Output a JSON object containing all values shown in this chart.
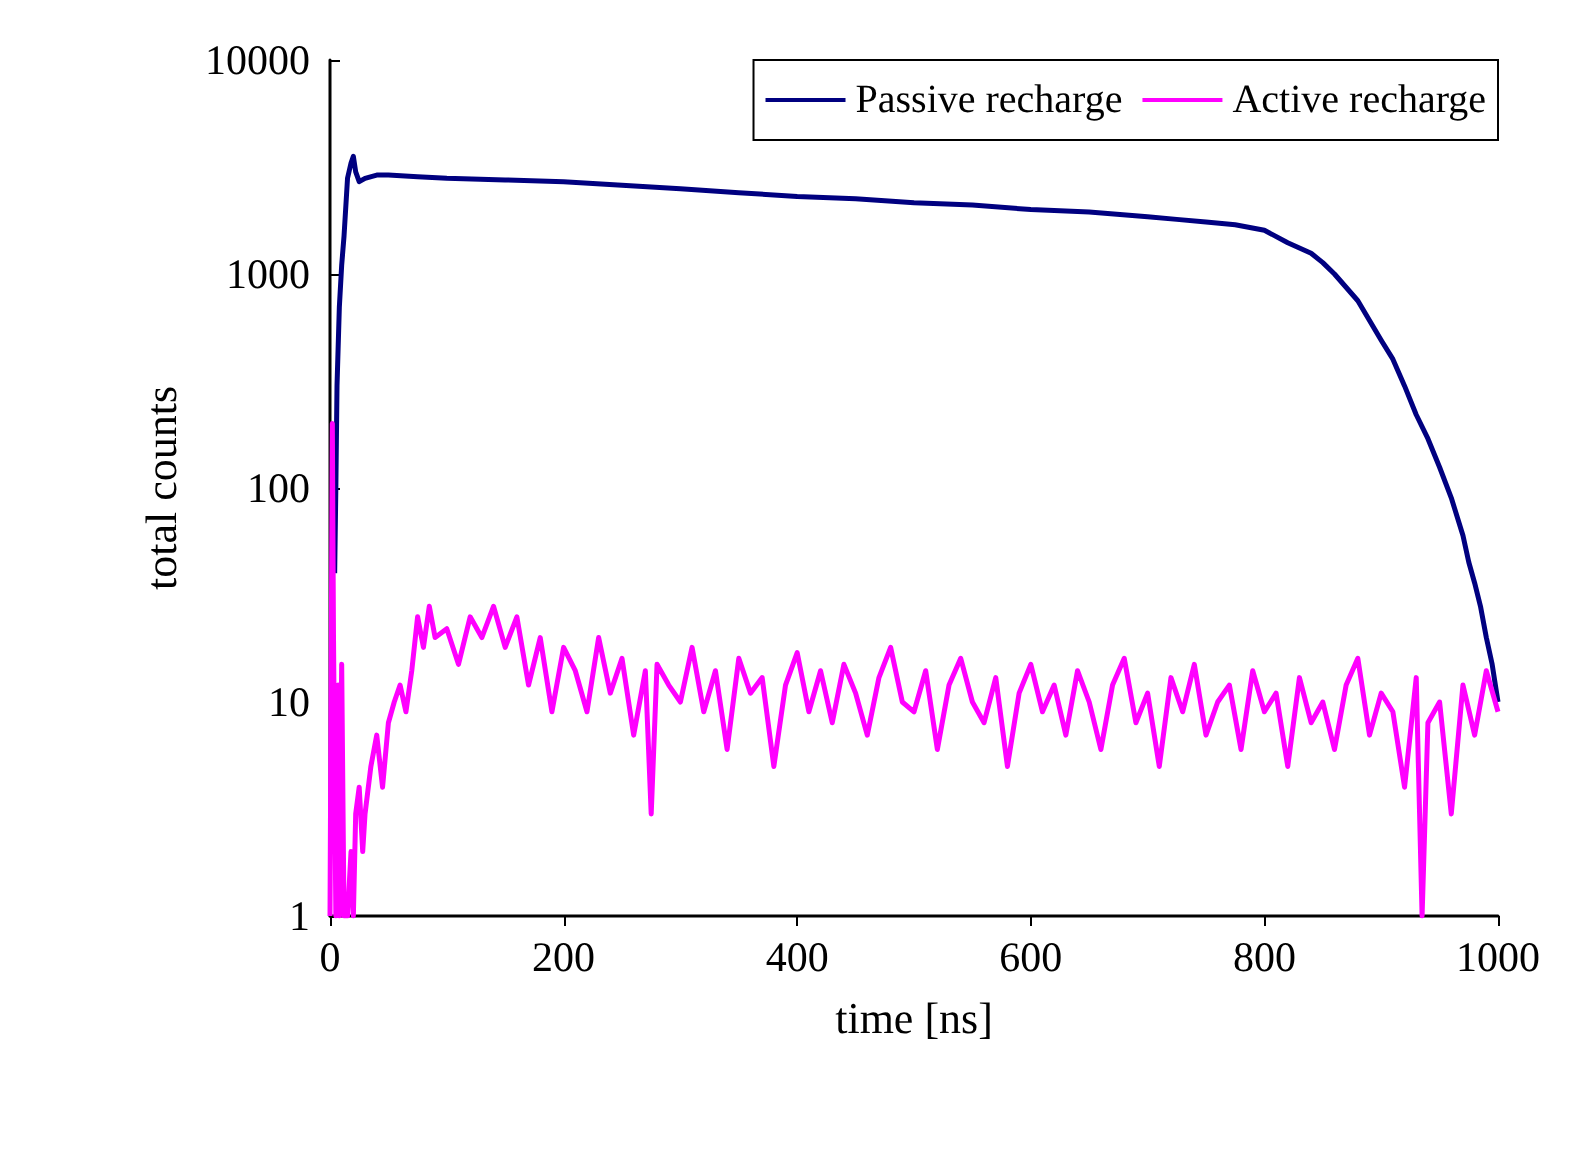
{
  "chart_data": {
    "type": "line",
    "xlabel": "time [ns]",
    "ylabel": "total counts",
    "log": "y",
    "legend": "top right",
    "grid": false,
    "marker": "none",
    "line_style": "solid",
    "xlim": [
      0,
      1000
    ],
    "xticks": [
      0,
      200,
      400,
      600,
      800,
      1000
    ],
    "ylim": [
      1,
      10000
    ],
    "yticks": [
      1,
      10,
      100,
      1000,
      10000
    ],
    "series": [
      {
        "name": "Passive recharge",
        "color": "#000080",
        "x": [
          4,
          5,
          6,
          8,
          10,
          12,
          15,
          18,
          20,
          22,
          25,
          30,
          40,
          50,
          75,
          100,
          150,
          200,
          250,
          300,
          350,
          400,
          450,
          500,
          550,
          600,
          650,
          700,
          725,
          750,
          775,
          800,
          820,
          840,
          850,
          860,
          880,
          900,
          910,
          920,
          930,
          940,
          950,
          960,
          970,
          975,
          980,
          985,
          990,
          995,
          1000
        ],
        "values": [
          40,
          100,
          300,
          700,
          1100,
          1500,
          2800,
          3300,
          3550,
          3000,
          2700,
          2800,
          2900,
          2900,
          2850,
          2800,
          2750,
          2700,
          2600,
          2500,
          2400,
          2300,
          2250,
          2150,
          2100,
          2000,
          1950,
          1850,
          1800,
          1750,
          1700,
          1600,
          1400,
          1250,
          1130,
          1000,
          750,
          490,
          400,
          300,
          220,
          170,
          125,
          90,
          60,
          45,
          36,
          28,
          20,
          15,
          10
        ]
      },
      {
        "name": "Active recharge",
        "color": "#ff00ff",
        "x": [
          0,
          2,
          3,
          5,
          7,
          8,
          10,
          12,
          15,
          18,
          20,
          22,
          25,
          28,
          30,
          35,
          40,
          45,
          50,
          55,
          60,
          65,
          70,
          75,
          80,
          85,
          90,
          100,
          110,
          120,
          130,
          140,
          150,
          160,
          170,
          180,
          190,
          200,
          210,
          220,
          230,
          240,
          250,
          260,
          270,
          275,
          280,
          290,
          300,
          310,
          320,
          330,
          340,
          350,
          360,
          370,
          380,
          390,
          400,
          410,
          420,
          430,
          440,
          450,
          460,
          470,
          480,
          490,
          500,
          510,
          520,
          530,
          540,
          550,
          560,
          570,
          580,
          590,
          600,
          610,
          620,
          630,
          640,
          650,
          660,
          670,
          680,
          690,
          700,
          710,
          720,
          730,
          740,
          750,
          760,
          770,
          780,
          790,
          800,
          810,
          820,
          830,
          840,
          850,
          860,
          870,
          880,
          890,
          900,
          910,
          920,
          930,
          935,
          940,
          950,
          960,
          970,
          980,
          990,
          1000
        ],
        "values": [
          1,
          200,
          20,
          1,
          12,
          1,
          15,
          1,
          1,
          2,
          1,
          3,
          4,
          2,
          3,
          5,
          7,
          4,
          8,
          10,
          12,
          9,
          14,
          25,
          18,
          28,
          20,
          22,
          15,
          25,
          20,
          28,
          18,
          25,
          12,
          20,
          9,
          18,
          14,
          9,
          20,
          11,
          16,
          7,
          14,
          3,
          15,
          12,
          10,
          18,
          9,
          14,
          6,
          16,
          11,
          13,
          5,
          12,
          17,
          9,
          14,
          8,
          15,
          11,
          7,
          13,
          18,
          10,
          9,
          14,
          6,
          12,
          16,
          10,
          8,
          13,
          5,
          11,
          15,
          9,
          12,
          7,
          14,
          10,
          6,
          12,
          16,
          8,
          11,
          5,
          13,
          9,
          15,
          7,
          10,
          12,
          6,
          14,
          9,
          11,
          5,
          13,
          8,
          10,
          6,
          12,
          16,
          7,
          11,
          9,
          4,
          13,
          1,
          8,
          10,
          3,
          12,
          7,
          14,
          9
        ]
      }
    ]
  }
}
